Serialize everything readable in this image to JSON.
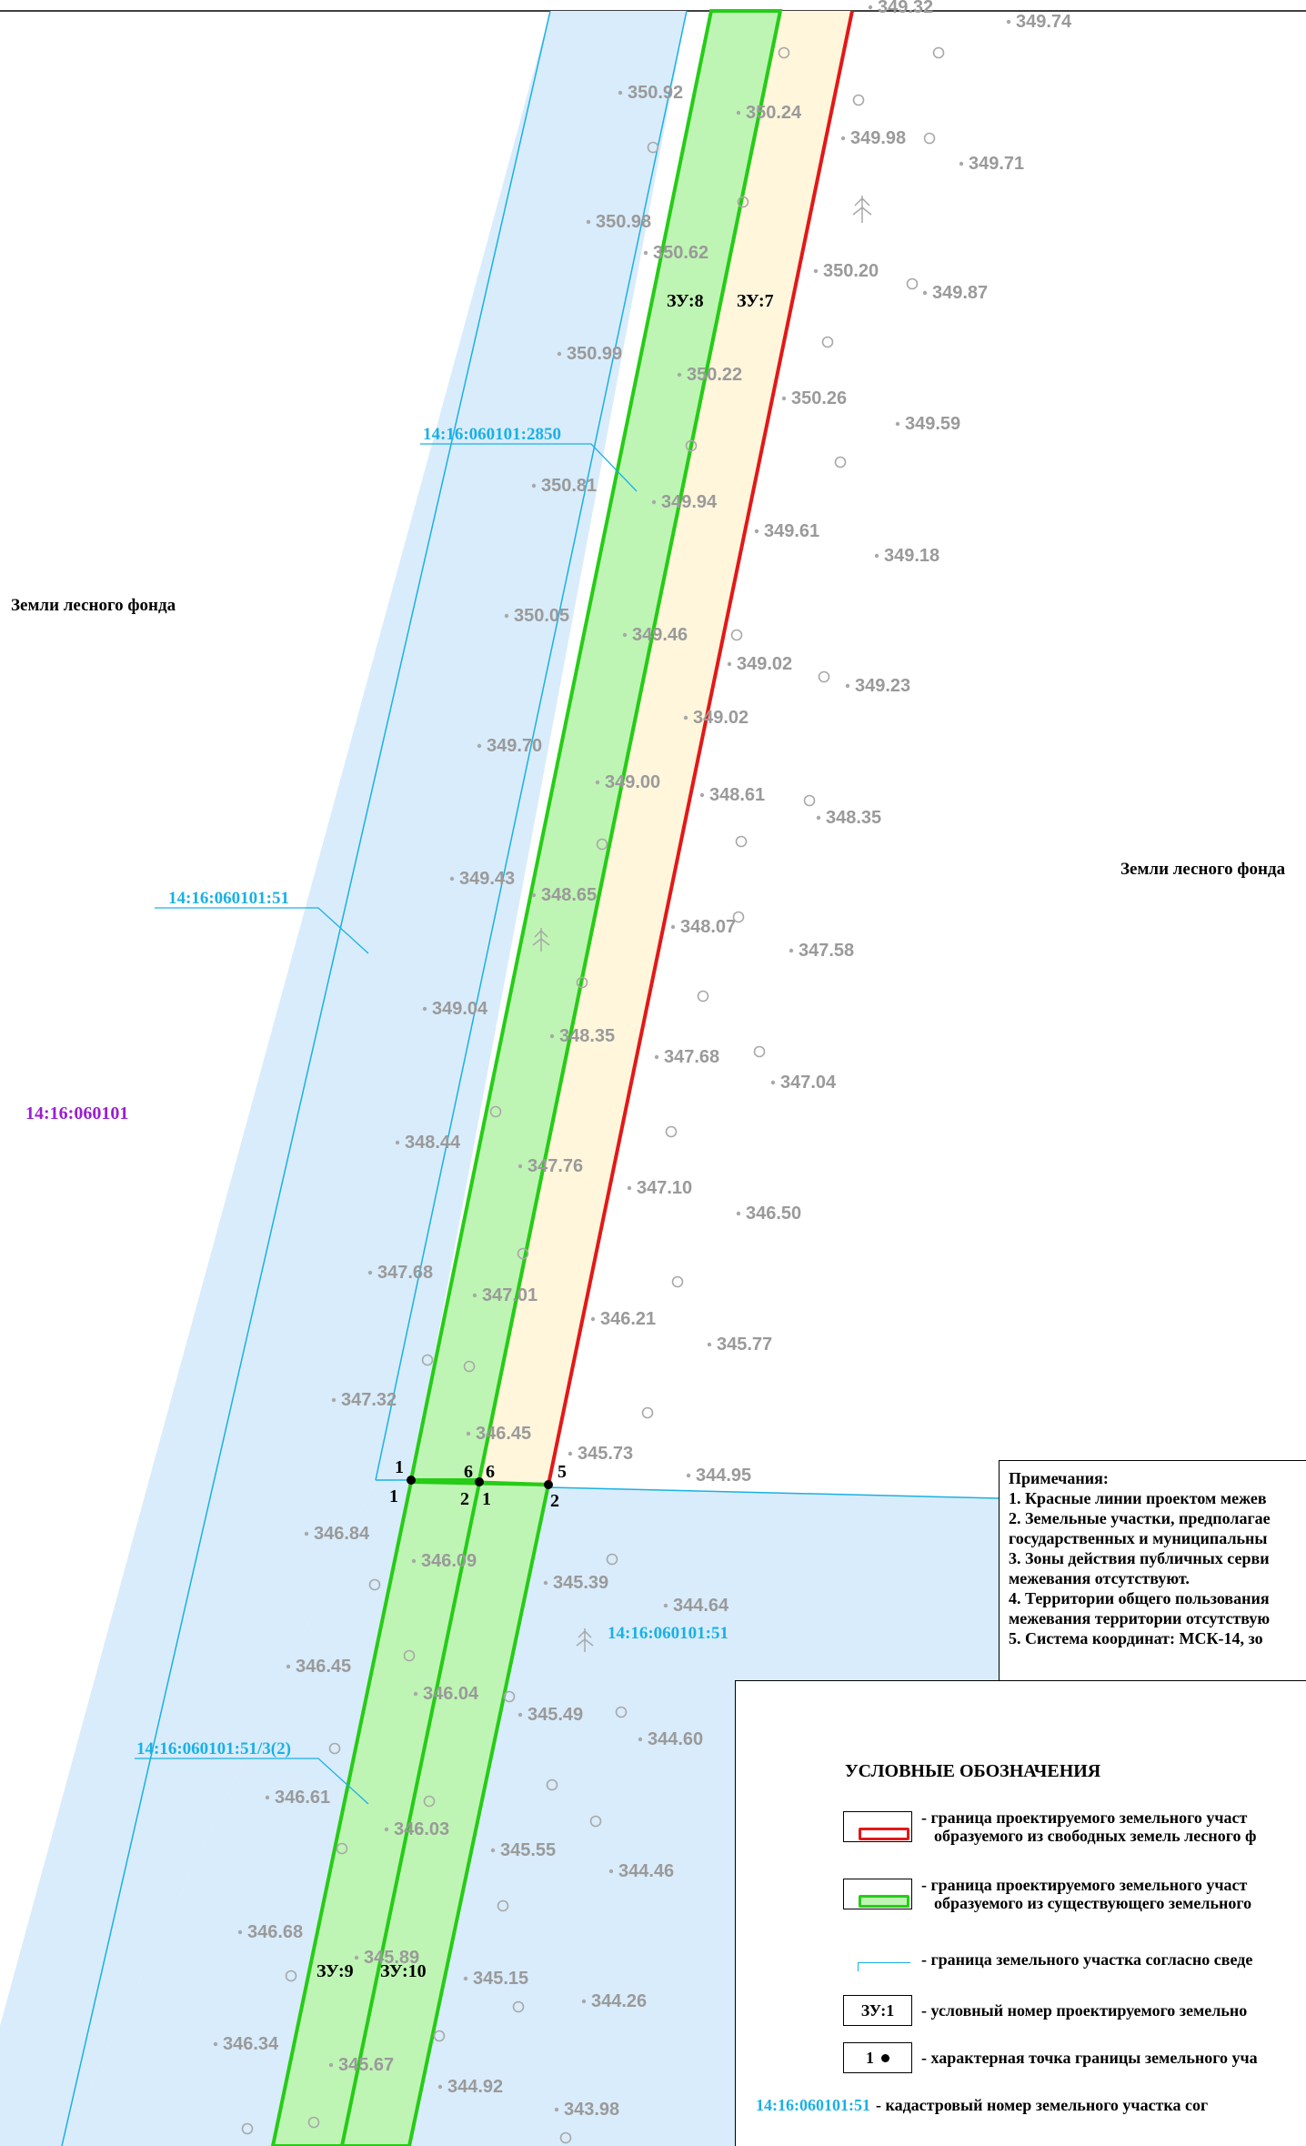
{
  "map": {
    "lands_left": "Земли лесного фонда",
    "lands_right": "Земли лесного фонда",
    "quarter": "14:16:060101",
    "parcel_codes": {
      "top": "14:16:060101:2850",
      "left": "14:16:060101:51",
      "lower": "14:16:060101:51",
      "sub": "14:16:060101:51/3(2)"
    },
    "zu": {
      "zu7": "ЗУ:7",
      "zu8": "ЗУ:8",
      "zu9": "ЗУ:9",
      "zu10": "ЗУ:10"
    },
    "points": {
      "p1a": "1",
      "p1b": "1",
      "p6a": "6",
      "p6b": "6",
      "p2a": "2",
      "p1c": "1",
      "p5": "5",
      "p2b": "2"
    },
    "elevations": [
      "349.32",
      "349.74",
      "350.92",
      "350.24",
      "349.98",
      "349.71",
      "350.98",
      "350.62",
      "350.20",
      "349.87",
      "350.99",
      "350.22",
      "350.26",
      "349.59",
      "350.81",
      "349.94",
      "349.61",
      "349.18",
      "350.05",
      "349.46",
      "349.02",
      "349.23",
      "349.02",
      "349.70",
      "349.00",
      "348.61",
      "348.35",
      "349.43",
      "348.65",
      "348.07",
      "347.58",
      "349.04",
      "348.35",
      "347.68",
      "347.04",
      "348.44",
      "347.76",
      "347.10",
      "346.50",
      "347.68",
      "347.01",
      "346.21",
      "345.77",
      "347.32",
      "346.45",
      "345.73",
      "344.95",
      "346.84",
      "346.09",
      "345.39",
      "344.64",
      "346.45",
      "346.04",
      "345.49",
      "344.60",
      "346.61",
      "346.03",
      "345.55",
      "344.46",
      "346.68",
      "345.89",
      "345.15",
      "344.26",
      "346.34",
      "345.67",
      "344.92",
      "343.98"
    ]
  },
  "notes": {
    "title": "Примечания:",
    "lines": [
      "1. Красные линии проектом межев",
      "2. Земельные участки, предполагае",
      "государственных и муниципальны",
      "3. Зоны действия публичных серви",
      "межевания отсутствуют.",
      "4. Территории общего пользования",
      "межевания территории отсутствую",
      "5. Система координат: МСК-14, зо"
    ]
  },
  "legend": {
    "title": "УСЛОВНЫЕ ОБОЗНАЧЕНИЯ",
    "items": [
      {
        "line1": "- граница проектируемого земельного участ",
        "line2": "образуемого из свободных земель лесного ф"
      },
      {
        "line1": "- граница проектируемого земельного участ",
        "line2": "образуемого из существующего земельного"
      },
      {
        "line1": "- граница земельного участка согласно сведе"
      },
      {
        "box": "ЗУ:1",
        "line1": "- условный номер проектируемого земельно"
      },
      {
        "box": "1",
        "line1": "- характерная точка границы земельного уча"
      },
      {
        "code": "14:16:060101:51",
        "line1": "- кадастровый номер земельного участка сог"
      }
    ]
  },
  "colors": {
    "red": "#e31818",
    "green": "#26cc17",
    "green_fill": "#bff5b4",
    "beige_fill": "#fff6dc",
    "blue": "#1ab0e6",
    "blue_fill": "#d9ecfb"
  }
}
